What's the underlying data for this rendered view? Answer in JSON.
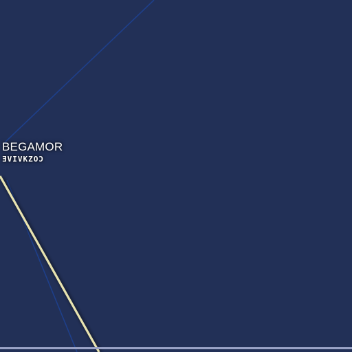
{
  "map": {
    "background_color": "#223057",
    "route_color": "#e8e3b0",
    "grid_line_color": "#1e3f8a",
    "border_color": "#9aa3c7",
    "planet": {
      "name": "BEGAMOR",
      "aurebesh_name": "ƎVIVKZOƆ"
    }
  }
}
